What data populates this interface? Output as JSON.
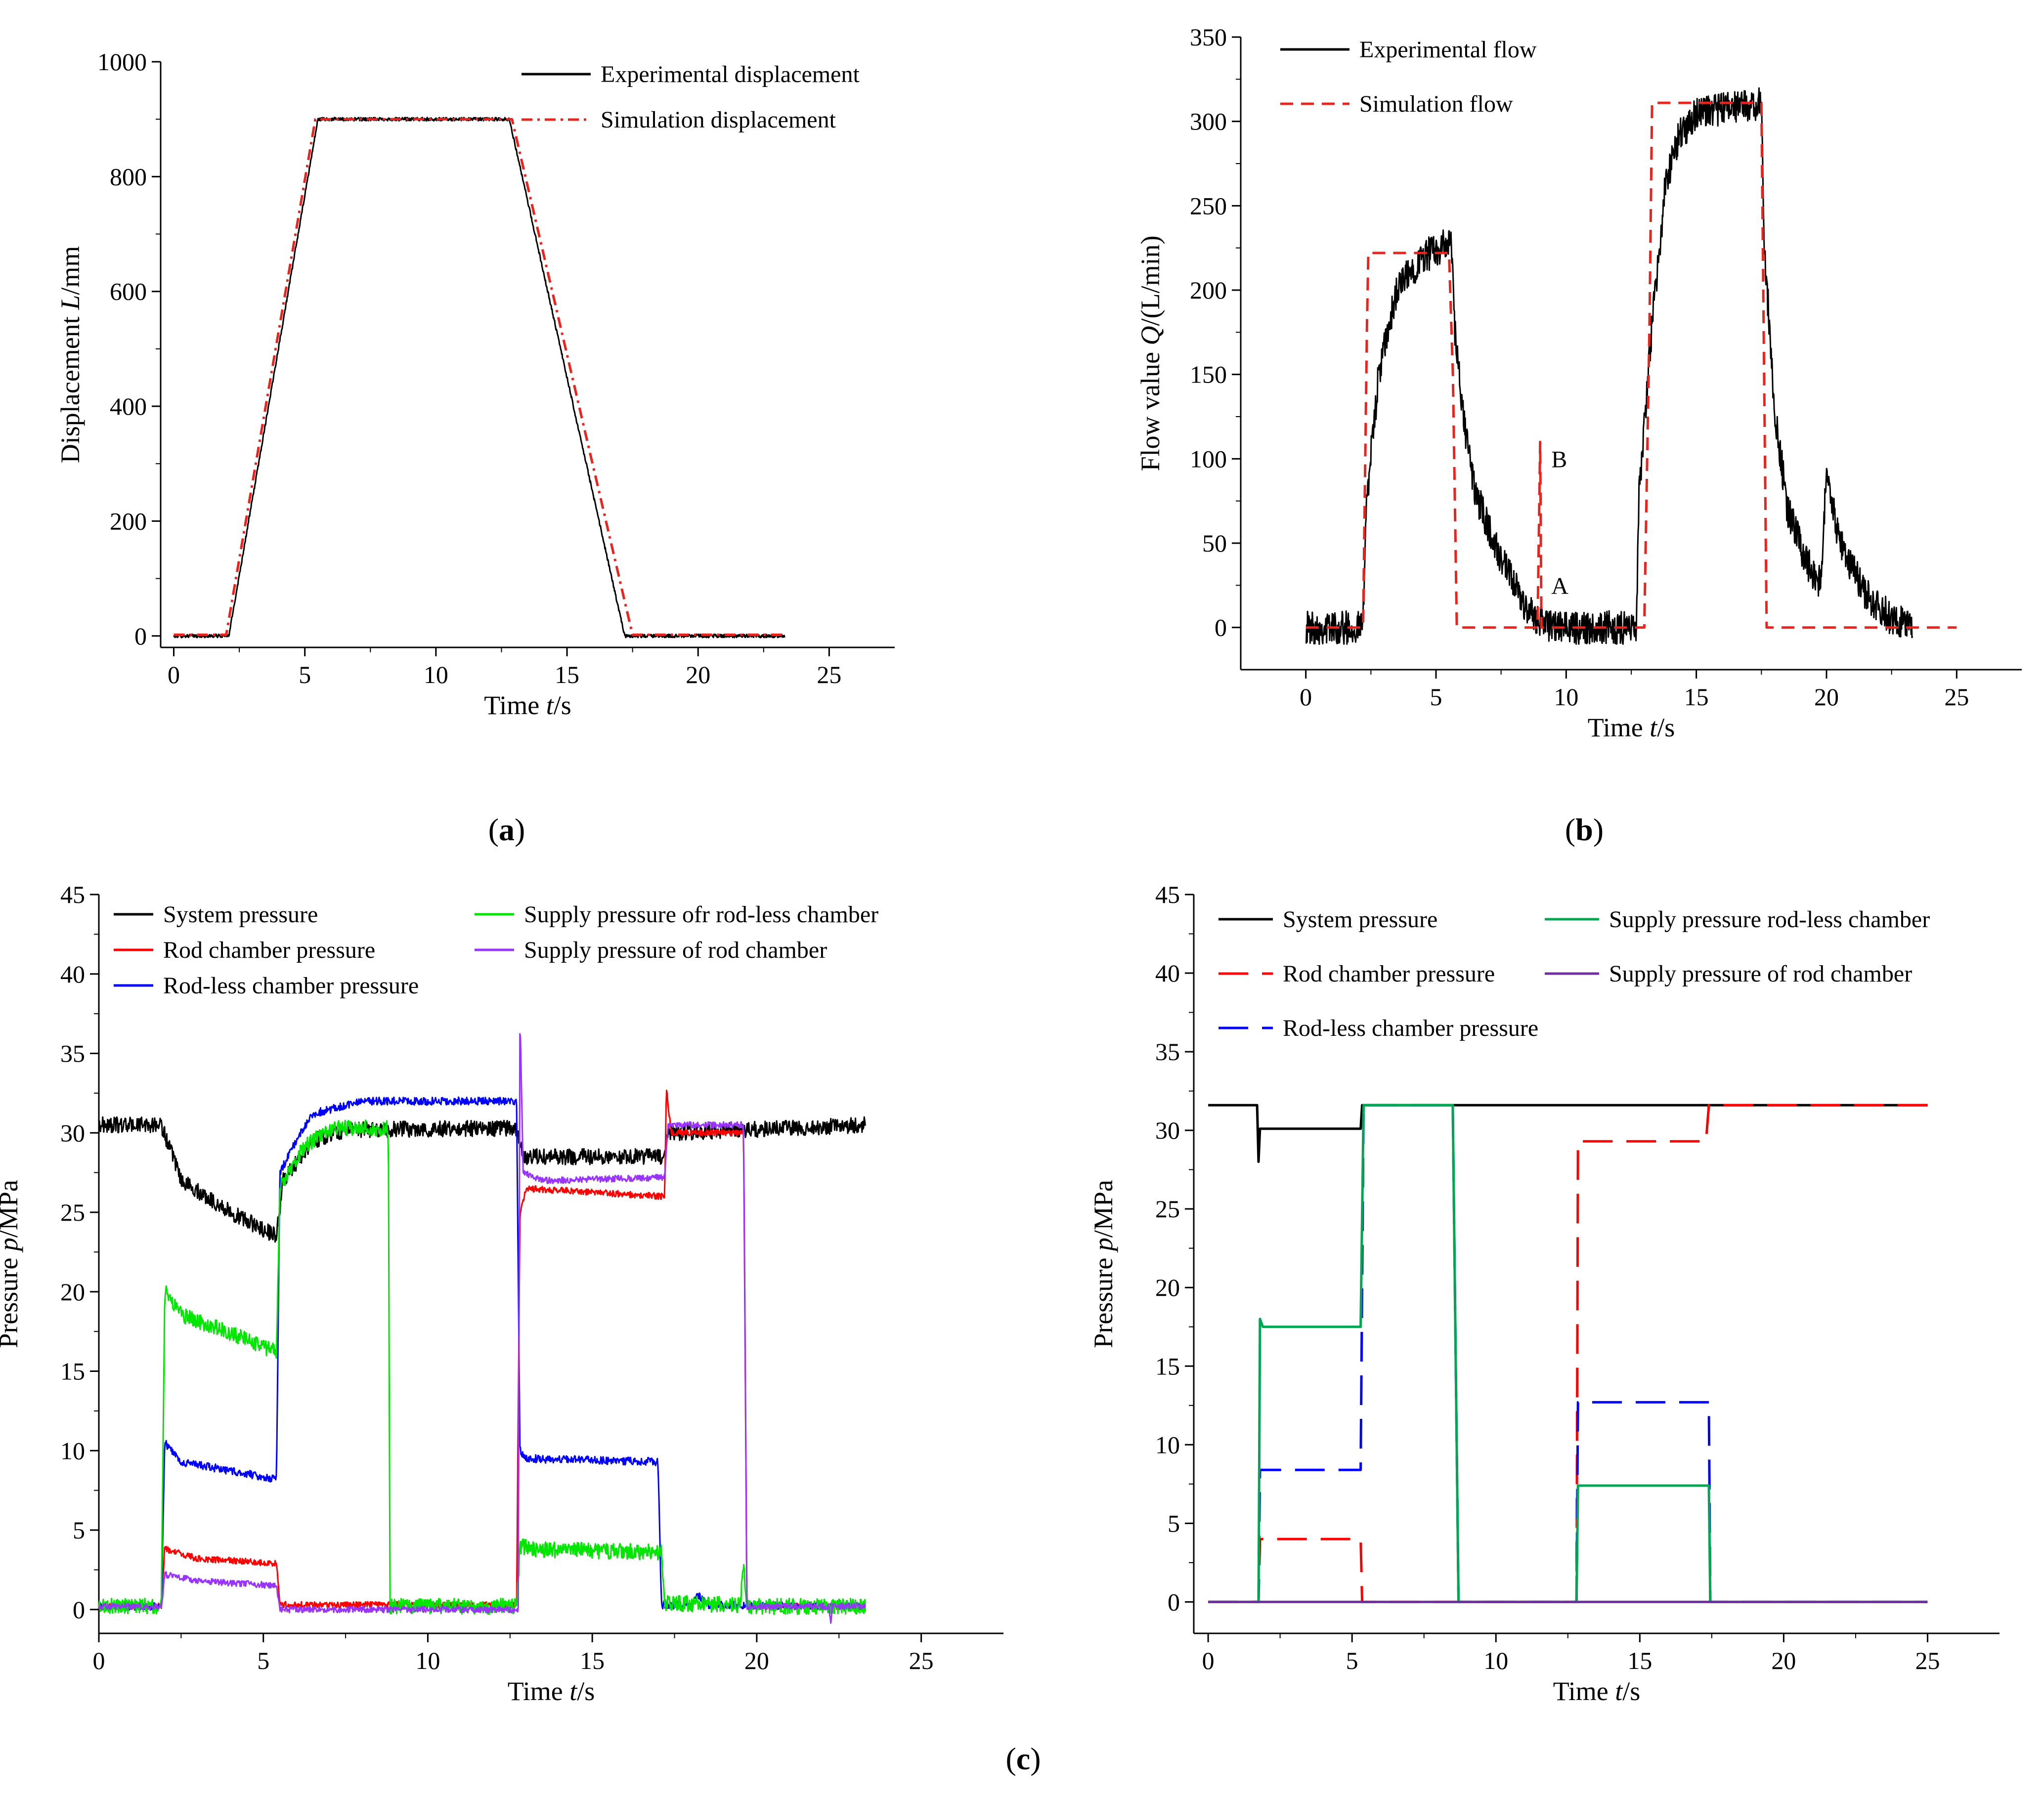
{
  "panel_labels": {
    "a": "a",
    "b": "b",
    "c": "c"
  },
  "chart_data": [
    {
      "id": "a",
      "type": "line",
      "xlabel": "Time t/s",
      "xlabel_pre": "Time ",
      "xlabel_var": "t",
      "xlabel_post": "/s",
      "ylabel": "Displacement L/mm",
      "ylabel_pre": "Displacement ",
      "ylabel_var": "L",
      "ylabel_post": "/mm",
      "xlim": [
        -0.5,
        27.5
      ],
      "ylim": [
        -20,
        1000
      ],
      "xticks": [
        0,
        5,
        10,
        15,
        20,
        25
      ],
      "yticks": [
        0,
        200,
        400,
        600,
        800,
        1000
      ],
      "legend_position": "top-right",
      "series": [
        {
          "name": "Experimental displacement",
          "style": "solid",
          "color": "#000000",
          "noise": 3,
          "points": [
            [
              0,
              0
            ],
            [
              2.1,
              0
            ],
            [
              5.5,
              900
            ],
            [
              12.8,
              900
            ],
            [
              17.2,
              0
            ],
            [
              23.3,
              0
            ]
          ]
        },
        {
          "name": "Simulation displacement",
          "style": "dashdot",
          "color": "#e8241f",
          "noise": 0,
          "points": [
            [
              0,
              2
            ],
            [
              2.0,
              2
            ],
            [
              5.4,
              900
            ],
            [
              12.9,
              900
            ],
            [
              17.5,
              2
            ],
            [
              23.3,
              2
            ]
          ]
        }
      ]
    },
    {
      "id": "b",
      "type": "line",
      "xlabel": "Time t/s",
      "xlabel_pre": "Time ",
      "xlabel_var": "t",
      "xlabel_post": "/s",
      "ylabel": "Flow value Q/(L/min)",
      "ylabel_pre": "Flow value ",
      "ylabel_var": "Q",
      "ylabel_post": "/(L/min)",
      "xlim": [
        -2.5,
        27.5
      ],
      "ylim": [
        -25,
        350
      ],
      "xticks": [
        0,
        5,
        10,
        15,
        20,
        25
      ],
      "yticks": [
        0,
        50,
        100,
        150,
        200,
        250,
        300,
        350
      ],
      "legend_position": "top-left",
      "annotations": [
        {
          "text": "B",
          "x": 9.2,
          "y": 95
        },
        {
          "text": "A",
          "x": 9.2,
          "y": 20
        }
      ],
      "series": [
        {
          "name": "Experimental flow",
          "style": "solid",
          "color": "#000000",
          "noise": 10,
          "points": [
            [
              0,
              0
            ],
            [
              2.2,
              0
            ],
            [
              2.3,
              70
            ],
            [
              2.8,
              150
            ],
            [
              3.5,
              200
            ],
            [
              4.5,
              220
            ],
            [
              5.6,
              228
            ],
            [
              5.7,
              180
            ],
            [
              6.0,
              130
            ],
            [
              6.5,
              80
            ],
            [
              7.5,
              40
            ],
            [
              8.5,
              10
            ],
            [
              9.5,
              0
            ],
            [
              12.7,
              0
            ],
            [
              12.8,
              80
            ],
            [
              13.3,
              180
            ],
            [
              13.8,
              260
            ],
            [
              14.3,
              290
            ],
            [
              15.0,
              305
            ],
            [
              17.5,
              310
            ],
            [
              17.6,
              230
            ],
            [
              18.0,
              130
            ],
            [
              18.5,
              70
            ],
            [
              19.2,
              40
            ],
            [
              19.8,
              25
            ],
            [
              20.0,
              95
            ],
            [
              20.5,
              50
            ],
            [
              21.5,
              20
            ],
            [
              22.5,
              5
            ],
            [
              23.3,
              0
            ]
          ]
        },
        {
          "name": "Simulation flow",
          "style": "dashed",
          "color": "#e8241f",
          "noise": 0,
          "points": [
            [
              0,
              0
            ],
            [
              2.2,
              0
            ],
            [
              2.35,
              180
            ],
            [
              2.4,
              222
            ],
            [
              5.5,
              222
            ],
            [
              5.65,
              150
            ],
            [
              5.8,
              0
            ],
            [
              8.9,
              0
            ],
            [
              9.0,
              110
            ],
            [
              9.05,
              0
            ],
            [
              13.0,
              0
            ],
            [
              13.2,
              180
            ],
            [
              13.3,
              311
            ],
            [
              17.5,
              311
            ],
            [
              17.7,
              0
            ],
            [
              25.0,
              0
            ]
          ]
        }
      ]
    },
    {
      "id": "c_left",
      "type": "line",
      "xlabel": "Time t/s",
      "xlabel_pre": "Time ",
      "xlabel_var": "t",
      "xlabel_post": "/s",
      "ylabel": "Pressure p/MPa",
      "ylabel_pre": "Pressure ",
      "ylabel_var": "p",
      "ylabel_post": "/MPa",
      "xlim": [
        0,
        27.5
      ],
      "ylim": [
        -1.5,
        45
      ],
      "xticks": [
        0,
        5,
        10,
        15,
        20,
        25
      ],
      "yticks": [
        0,
        5,
        10,
        15,
        20,
        25,
        30,
        35,
        40,
        45
      ],
      "legend_position": "top",
      "series": [
        {
          "name": "System pressure",
          "style": "solid",
          "color": "#000000",
          "noise": 0.5,
          "points": [
            [
              0,
              30.5
            ],
            [
              1.9,
              30.5
            ],
            [
              2.5,
              27
            ],
            [
              4,
              25
            ],
            [
              5.4,
              23.5
            ],
            [
              5.6,
              27
            ],
            [
              6.5,
              29.5
            ],
            [
              7.5,
              30.2
            ],
            [
              12.7,
              30.3
            ],
            [
              12.9,
              28.5
            ],
            [
              17.2,
              28.5
            ],
            [
              17.3,
              30
            ],
            [
              23.3,
              30.5
            ]
          ]
        },
        {
          "name": "Rod chamber pressure",
          "style": "solid",
          "color": "#ff0000",
          "noise": 0.2,
          "points": [
            [
              0,
              0.2
            ],
            [
              1.9,
              0.2
            ],
            [
              2.0,
              3.8
            ],
            [
              3.0,
              3.2
            ],
            [
              5.4,
              2.9
            ],
            [
              5.5,
              0.3
            ],
            [
              12.7,
              0.3
            ],
            [
              12.8,
              25
            ],
            [
              13.0,
              26.5
            ],
            [
              17.2,
              26
            ],
            [
              17.25,
              32.8
            ],
            [
              17.4,
              30
            ],
            [
              19.6,
              30
            ],
            [
              19.7,
              0.2
            ],
            [
              23.3,
              0.2
            ]
          ]
        },
        {
          "name": "Rod-less chamber pressure",
          "style": "solid",
          "color": "#0000ff",
          "noise": 0.25,
          "points": [
            [
              0,
              0.2
            ],
            [
              1.9,
              0.2
            ],
            [
              2.0,
              10.5
            ],
            [
              2.5,
              9.3
            ],
            [
              5.4,
              8.2
            ],
            [
              5.5,
              27.5
            ],
            [
              6,
              29.5
            ],
            [
              6.5,
              31.2
            ],
            [
              8,
              32
            ],
            [
              12.7,
              32
            ],
            [
              12.8,
              10
            ],
            [
              13.0,
              9.5
            ],
            [
              17.0,
              9.3
            ],
            [
              17.1,
              0.3
            ],
            [
              18.0,
              0.3
            ],
            [
              18.2,
              1
            ],
            [
              18.5,
              0.3
            ],
            [
              23.3,
              0.2
            ]
          ]
        },
        {
          "name": "Supply pressure ofr rod-less chamber",
          "style": "solid",
          "color": "#00e600",
          "noise": 0.5,
          "points": [
            [
              0,
              0.2
            ],
            [
              1.9,
              0.2
            ],
            [
              2.0,
              20
            ],
            [
              2.6,
              18.5
            ],
            [
              4.5,
              17
            ],
            [
              5.4,
              16.2
            ],
            [
              5.5,
              26.5
            ],
            [
              6.2,
              29
            ],
            [
              7,
              30.3
            ],
            [
              8.8,
              30.3
            ],
            [
              8.85,
              0.2
            ],
            [
              12.7,
              0.2
            ],
            [
              12.8,
              4
            ],
            [
              13.2,
              3.8
            ],
            [
              17.1,
              3.6
            ],
            [
              17.2,
              0.4
            ],
            [
              19.5,
              0.3
            ],
            [
              19.6,
              3
            ],
            [
              19.7,
              0.2
            ],
            [
              23.3,
              0.2
            ]
          ]
        },
        {
          "name": "Supply pressure of rod chamber",
          "style": "solid",
          "color": "#9933ff",
          "noise": 0.2,
          "points": [
            [
              0,
              0.2
            ],
            [
              1.9,
              0.2
            ],
            [
              2.0,
              2.2
            ],
            [
              3,
              1.8
            ],
            [
              5.4,
              1.5
            ],
            [
              5.5,
              0
            ],
            [
              12.75,
              0
            ],
            [
              12.8,
              37.5
            ],
            [
              12.9,
              27.5
            ],
            [
              13.5,
              27
            ],
            [
              17.2,
              27.2
            ],
            [
              17.3,
              30.5
            ],
            [
              19.6,
              30.5
            ],
            [
              19.7,
              0.2
            ],
            [
              22.2,
              0.2
            ],
            [
              22.25,
              -1
            ],
            [
              22.3,
              0.2
            ],
            [
              23.3,
              0.2
            ]
          ]
        }
      ]
    },
    {
      "id": "c_right",
      "type": "line",
      "xlabel": "Time t/s",
      "xlabel_pre": "Time ",
      "xlabel_var": "t",
      "xlabel_post": "/s",
      "ylabel": "Pressure p/MPa",
      "ylabel_pre": "Pressure ",
      "ylabel_var": "p",
      "ylabel_post": "/MPa",
      "xlim": [
        -0.5,
        27.5
      ],
      "ylim": [
        -2,
        45
      ],
      "xticks": [
        0,
        5,
        10,
        15,
        20,
        25
      ],
      "yticks": [
        0,
        5,
        10,
        15,
        20,
        25,
        30,
        35,
        40,
        45
      ],
      "legend_position": "top",
      "series": [
        {
          "name": "System pressure",
          "style": "solid",
          "color": "#000000",
          "noise": 0,
          "points": [
            [
              0,
              31.6
            ],
            [
              1.7,
              31.6
            ],
            [
              1.75,
              28
            ],
            [
              1.8,
              30.1
            ],
            [
              5.3,
              30.1
            ],
            [
              5.35,
              31.6
            ],
            [
              25,
              31.6
            ]
          ]
        },
        {
          "name": "Rod chamber pressure",
          "style": "longdash",
          "color": "#ff0000",
          "noise": 0,
          "points": [
            [
              0,
              0
            ],
            [
              1.75,
              0
            ],
            [
              1.8,
              4
            ],
            [
              5.3,
              4
            ],
            [
              5.35,
              0
            ],
            [
              12.8,
              0
            ],
            [
              12.85,
              29.3
            ],
            [
              17.3,
              29.3
            ],
            [
              17.4,
              31.6
            ],
            [
              25,
              31.6
            ]
          ]
        },
        {
          "name": "Rod-less chamber pressure",
          "style": "longdash",
          "color": "#0000ff",
          "noise": 0,
          "points": [
            [
              0,
              0
            ],
            [
              1.75,
              0
            ],
            [
              1.8,
              8.4
            ],
            [
              5.3,
              8.4
            ],
            [
              5.4,
              31.6
            ],
            [
              8.5,
              31.6
            ],
            [
              8.7,
              0
            ],
            [
              12.8,
              0
            ],
            [
              12.85,
              12.7
            ],
            [
              17.4,
              12.7
            ],
            [
              17.45,
              0
            ],
            [
              25,
              0
            ]
          ]
        },
        {
          "name": "Supply pressure rod-less chamber",
          "style": "solid",
          "color": "#00a651",
          "noise": 0,
          "points": [
            [
              0,
              0
            ],
            [
              1.75,
              0
            ],
            [
              1.8,
              18
            ],
            [
              1.9,
              17.5
            ],
            [
              5.3,
              17.5
            ],
            [
              5.4,
              31.6
            ],
            [
              8.5,
              31.6
            ],
            [
              8.7,
              0
            ],
            [
              12.8,
              0
            ],
            [
              12.85,
              7.4
            ],
            [
              17.4,
              7.4
            ],
            [
              17.45,
              0
            ],
            [
              25,
              0
            ]
          ]
        },
        {
          "name": "Supply pressure of rod chamber",
          "style": "solid",
          "color": "#7030a0",
          "noise": 0,
          "points": [
            [
              0,
              0
            ],
            [
              25,
              0
            ]
          ]
        }
      ]
    }
  ]
}
